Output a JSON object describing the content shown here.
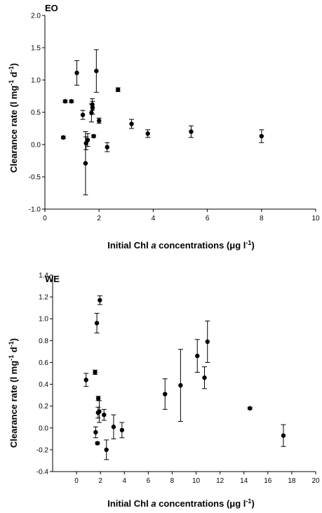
{
  "chart_data": [
    {
      "type": "scatter",
      "panel_label": "EO",
      "xlabel": "Initial Chl a concentrations (μg l-1)",
      "ylabel": "Clearance rate (l mg-1 d-1)",
      "xlim": [
        0,
        10
      ],
      "ylim": [
        -1.0,
        2.0
      ],
      "x_ticks": [
        0,
        2,
        4,
        6,
        8,
        10
      ],
      "x_tick_labels": [
        "0",
        "2",
        "4",
        "6",
        "8",
        "10"
      ],
      "y_ticks": [
        -1.0,
        -0.5,
        0.0,
        0.5,
        1.0,
        1.5,
        2.0
      ],
      "y_tick_labels": [
        "-1.0",
        "-0.5",
        "0.0",
        "0.5",
        "1.0",
        "1.5",
        "2.0"
      ],
      "grid": false,
      "points": [
        {
          "x": 0.68,
          "y": 0.11,
          "err": 0.02
        },
        {
          "x": 0.75,
          "y": 0.67,
          "err": 0.02
        },
        {
          "x": 0.98,
          "y": 0.67,
          "err": 0.02
        },
        {
          "x": 1.18,
          "y": 1.11,
          "err": 0.19
        },
        {
          "x": 1.4,
          "y": 0.46,
          "err": 0.07
        },
        {
          "x": 1.5,
          "y": -0.29,
          "err": 0.49
        },
        {
          "x": 1.52,
          "y": 0.02,
          "err": 0.1
        },
        {
          "x": 1.58,
          "y": 0.07,
          "err": 0.1
        },
        {
          "x": 1.72,
          "y": 0.49,
          "err": 0.14
        },
        {
          "x": 1.75,
          "y": 0.62,
          "err": 0.09
        },
        {
          "x": 1.76,
          "y": 0.57,
          "err": 0.1
        },
        {
          "x": 1.8,
          "y": 0.13,
          "err": 0.02
        },
        {
          "x": 1.9,
          "y": 1.14,
          "err": 0.33
        },
        {
          "x": 2.0,
          "y": 0.37,
          "err": 0.04
        },
        {
          "x": 2.3,
          "y": -0.04,
          "err": 0.07
        },
        {
          "x": 2.7,
          "y": 0.85,
          "err": 0.03
        },
        {
          "x": 3.2,
          "y": 0.32,
          "err": 0.07
        },
        {
          "x": 3.8,
          "y": 0.17,
          "err": 0.06
        },
        {
          "x": 5.4,
          "y": 0.2,
          "err": 0.09
        },
        {
          "x": 8.0,
          "y": 0.13,
          "err": 0.1
        }
      ]
    },
    {
      "type": "scatter",
      "panel_label": "WE",
      "xlabel": "Initial Chl a concentrations (μg l-1)",
      "ylabel": "Clearance rate (l mg-1 d-1)",
      "xlim": [
        -2,
        20
      ],
      "ylim": [
        -0.4,
        1.4
      ],
      "x_ticks": [
        0,
        2,
        4,
        6,
        8,
        10,
        12,
        14,
        16,
        18,
        20
      ],
      "x_tick_labels": [
        "0",
        "2",
        "4",
        "6",
        "8",
        "10",
        "12",
        "14",
        "16",
        "18",
        "20"
      ],
      "y_ticks": [
        -0.4,
        -0.2,
        0.0,
        0.2,
        0.4,
        0.6,
        0.8,
        1.0,
        1.2,
        1.4
      ],
      "y_tick_labels": [
        "-0.4",
        "-0.2",
        "0.0",
        "0.2",
        "0.4",
        "0.6",
        "0.8",
        "1.0",
        "1.2",
        "1.4"
      ],
      "grid": false,
      "points": [
        {
          "x": 0.8,
          "y": 0.44,
          "err": 0.06
        },
        {
          "x": 1.55,
          "y": 0.51,
          "err": 0.02
        },
        {
          "x": 1.6,
          "y": -0.04,
          "err": 0.05
        },
        {
          "x": 1.7,
          "y": 0.96,
          "err": 0.09
        },
        {
          "x": 1.75,
          "y": -0.14,
          "err": 0.01
        },
        {
          "x": 1.8,
          "y": 0.14,
          "err": 0.05
        },
        {
          "x": 1.82,
          "y": 0.27,
          "err": 0.02
        },
        {
          "x": 1.9,
          "y": 0.15,
          "err": 0.1
        },
        {
          "x": 1.95,
          "y": 1.17,
          "err": 0.04
        },
        {
          "x": 2.3,
          "y": 0.12,
          "err": 0.05
        },
        {
          "x": 2.5,
          "y": -0.2,
          "err": 0.09
        },
        {
          "x": 3.1,
          "y": 0.01,
          "err": 0.11
        },
        {
          "x": 3.8,
          "y": -0.02,
          "err": 0.07
        },
        {
          "x": 7.4,
          "y": 0.31,
          "err": 0.14
        },
        {
          "x": 8.7,
          "y": 0.39,
          "err": 0.33
        },
        {
          "x": 10.1,
          "y": 0.66,
          "err": 0.15
        },
        {
          "x": 10.7,
          "y": 0.46,
          "err": 0.1
        },
        {
          "x": 10.95,
          "y": 0.79,
          "err": 0.19
        },
        {
          "x": 14.5,
          "y": 0.18,
          "err": 0.01
        },
        {
          "x": 17.3,
          "y": -0.07,
          "err": 0.1
        }
      ]
    }
  ]
}
